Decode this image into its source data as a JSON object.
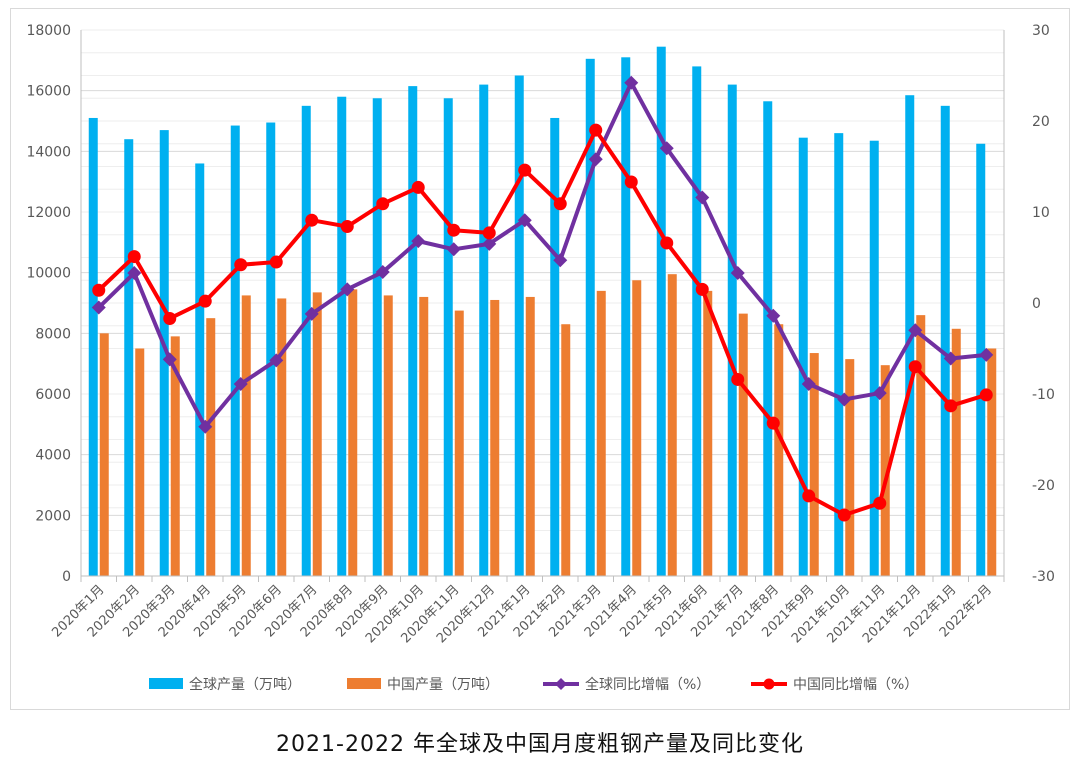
{
  "caption": "2021-2022 年全球及中国月度粗钢产量及同比变化",
  "colors": {
    "global_bar": "#00b0f0",
    "china_bar": "#ed7d31",
    "global_line": "#7030a0",
    "china_line": "#ff0000",
    "grid": "#d9d9d9",
    "axis": "#bfbfbf"
  },
  "chart_data": {
    "type": "bar",
    "title": "2021-2022 年全球及中国月度粗钢产量及同比变化",
    "categories": [
      "2020年1月",
      "2020年2月",
      "2020年3月",
      "2020年4月",
      "2020年5月",
      "2020年6月",
      "2020年7月",
      "2020年8月",
      "2020年9月",
      "2020年10月",
      "2020年11月",
      "2020年12月",
      "2021年1月",
      "2021年2月",
      "2021年3月",
      "2021年4月",
      "2021年5月",
      "2021年6月",
      "2021年7月",
      "2021年8月",
      "2021年9月",
      "2021年10月",
      "2021年11月",
      "2021年12月",
      "2022年1月",
      "2022年2月"
    ],
    "y_left": {
      "min": 0,
      "max": 18000,
      "step": 2000,
      "ticks": [
        "0",
        "2000",
        "4000",
        "6000",
        "8000",
        "10000",
        "12000",
        "14000",
        "16000",
        "18000"
      ]
    },
    "y_right": {
      "min": -30,
      "max": 30,
      "step": 10,
      "ticks": [
        "-30",
        "-20",
        "-10",
        "0",
        "10",
        "20",
        "30"
      ]
    },
    "series": [
      {
        "name": "全球产量（万吨）",
        "type": "bar",
        "axis": "left",
        "values": [
          15100,
          14400,
          14700,
          13600,
          14850,
          14950,
          15500,
          15800,
          15750,
          16150,
          15750,
          16200,
          16500,
          15100,
          17050,
          17100,
          17450,
          16800,
          16200,
          15650,
          14450,
          14600,
          14350,
          15850,
          15500,
          14250
        ]
      },
      {
        "name": "中国产量（万吨）",
        "type": "bar",
        "axis": "left",
        "values": [
          8000,
          7500,
          7900,
          8500,
          9250,
          9150,
          9350,
          9450,
          9250,
          9200,
          8750,
          9100,
          9200,
          8300,
          9400,
          9750,
          9950,
          9400,
          8650,
          8300,
          7350,
          7150,
          6950,
          8600,
          8150,
          7500
        ]
      },
      {
        "name": "全球同比增幅（%）",
        "type": "line",
        "axis": "right",
        "marker": "diamond",
        "values": [
          -0.5,
          3.3,
          -6.2,
          -13.6,
          -8.9,
          -6.3,
          -1.2,
          1.5,
          3.4,
          6.8,
          5.9,
          6.5,
          9.1,
          4.7,
          15.8,
          24.2,
          17.0,
          11.6,
          3.3,
          -1.4,
          -8.9,
          -10.6,
          -9.9,
          -3.0,
          -6.1,
          -5.7
        ]
      },
      {
        "name": "中国同比增幅（%）",
        "type": "line",
        "axis": "right",
        "marker": "circle",
        "values": [
          1.4,
          5.1,
          -1.7,
          0.2,
          4.2,
          4.5,
          9.1,
          8.4,
          10.9,
          12.7,
          8.0,
          7.7,
          14.6,
          10.9,
          19.0,
          13.3,
          6.6,
          1.5,
          -8.4,
          -13.2,
          -21.2,
          -23.3,
          -22.0,
          -7.0,
          -11.3,
          -10.1
        ]
      }
    ],
    "legend": {
      "position": "bottom"
    },
    "grid": true
  }
}
